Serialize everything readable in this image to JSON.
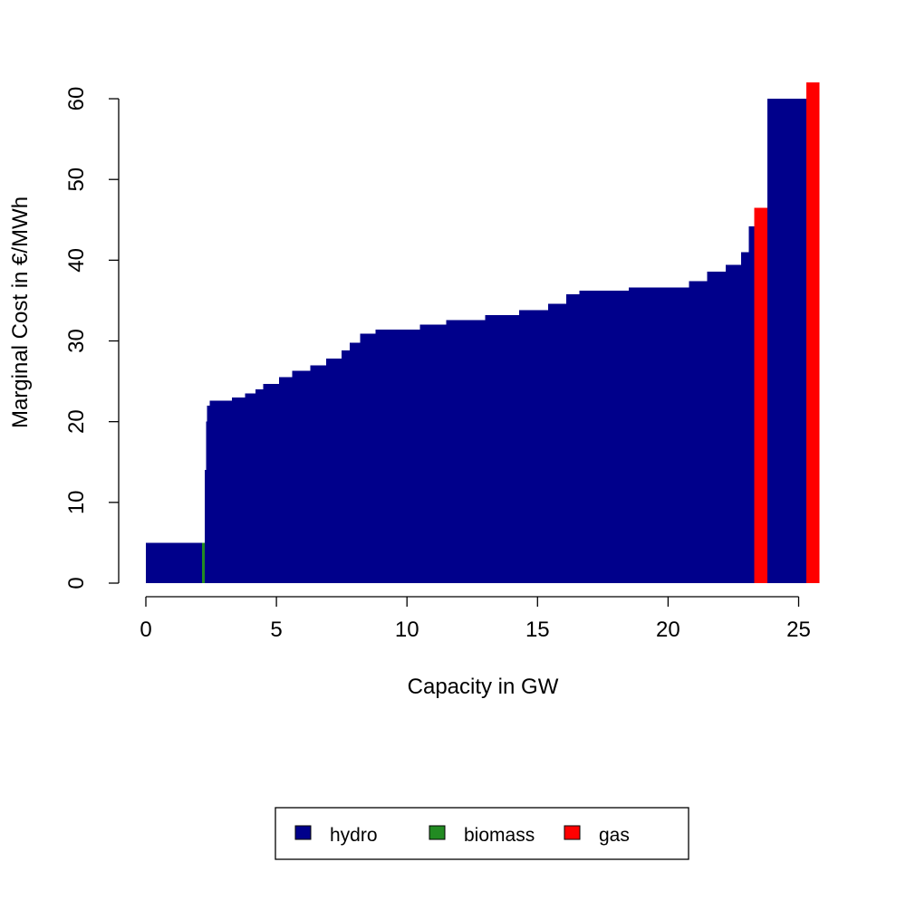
{
  "chart_data": {
    "type": "bar",
    "subtype": "merit-order step chart",
    "xlabel": "Capacity in GW",
    "ylabel": "Marginal Cost in €/MWh",
    "xlim": [
      0,
      26
    ],
    "ylim": [
      0,
      62
    ],
    "xticks": [
      0,
      5,
      10,
      15,
      20,
      25
    ],
    "yticks": [
      0,
      10,
      20,
      30,
      40,
      50,
      60
    ],
    "legend_position": "bottom",
    "colors": {
      "hydro": "#00008B",
      "biomass": "#228B22",
      "gas": "#FF0000"
    },
    "legend": [
      {
        "name": "hydro",
        "color": "#00008B"
      },
      {
        "name": "biomass",
        "color": "#228B22"
      },
      {
        "name": "gas",
        "color": "#FF0000"
      }
    ],
    "series": [
      {
        "name": "hydro",
        "steps": [
          [
            0.0,
            2.15,
            5.0
          ],
          [
            2.25,
            2.3,
            14.0
          ],
          [
            2.3,
            2.35,
            20.0
          ],
          [
            2.35,
            2.45,
            22.0
          ],
          [
            2.45,
            3.3,
            22.6
          ],
          [
            3.3,
            3.8,
            23.0
          ],
          [
            3.8,
            4.2,
            23.5
          ],
          [
            4.2,
            4.5,
            24.0
          ],
          [
            4.5,
            5.1,
            24.7
          ],
          [
            5.1,
            5.6,
            25.5
          ],
          [
            5.6,
            6.3,
            26.3
          ],
          [
            6.3,
            6.9,
            27.0
          ],
          [
            6.9,
            7.5,
            27.8
          ],
          [
            7.5,
            7.8,
            28.8
          ],
          [
            7.8,
            8.2,
            29.8
          ],
          [
            8.2,
            8.8,
            30.9
          ],
          [
            8.8,
            10.5,
            31.4
          ],
          [
            10.5,
            11.5,
            32.0
          ],
          [
            11.5,
            13.0,
            32.6
          ],
          [
            13.0,
            14.3,
            33.2
          ],
          [
            14.3,
            15.4,
            33.8
          ],
          [
            15.4,
            16.1,
            34.6
          ],
          [
            16.1,
            16.6,
            35.8
          ],
          [
            16.6,
            18.5,
            36.2
          ],
          [
            18.5,
            20.8,
            36.6
          ],
          [
            20.8,
            21.5,
            37.4
          ],
          [
            21.5,
            22.2,
            38.6
          ],
          [
            22.2,
            22.8,
            39.4
          ],
          [
            22.8,
            23.1,
            41.0
          ],
          [
            23.1,
            23.4,
            44.2
          ],
          [
            23.8,
            25.3,
            60.0
          ]
        ]
      },
      {
        "name": "biomass",
        "steps": [
          [
            2.15,
            2.25,
            5.0
          ]
        ]
      },
      {
        "name": "gas",
        "steps": [
          [
            23.3,
            23.8,
            46.5
          ],
          [
            25.3,
            25.8,
            62.0
          ]
        ]
      }
    ]
  }
}
